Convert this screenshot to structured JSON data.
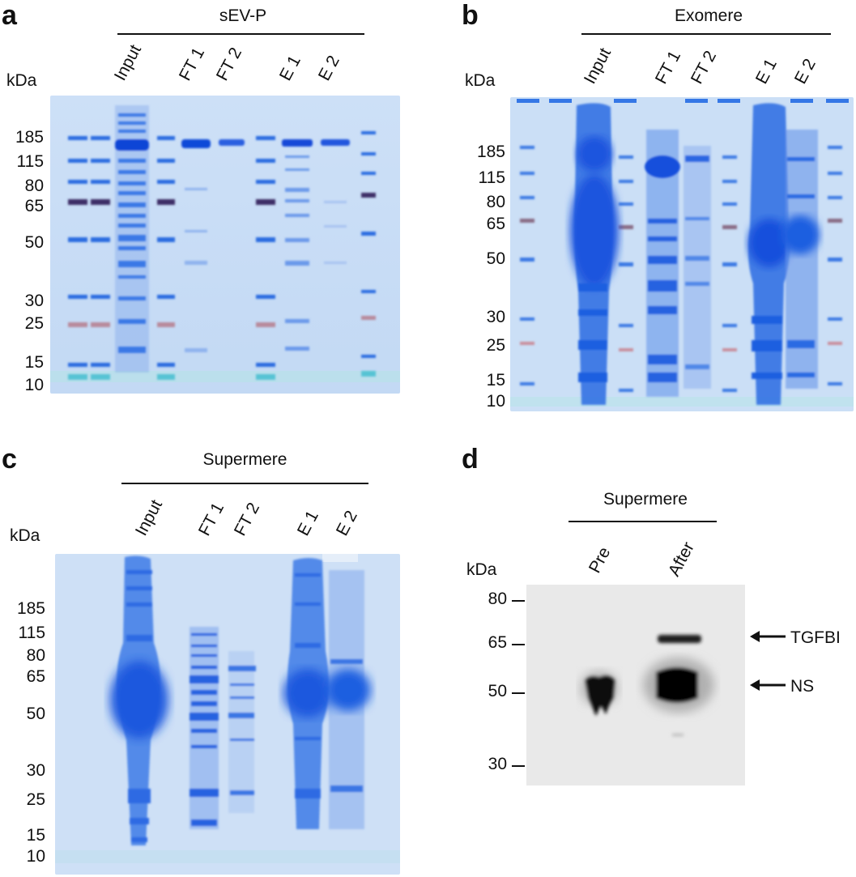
{
  "panels": {
    "a": {
      "letter": "a",
      "title": "sEV-P",
      "lanes": [
        "Input",
        "FT 1",
        "FT 2",
        "E 1",
        "E 2"
      ],
      "unit": "kDa",
      "markers": [
        "185",
        "115",
        "80",
        "65",
        "50",
        "30",
        "25",
        "15",
        "10"
      ]
    },
    "b": {
      "letter": "b",
      "title": "Exomere",
      "lanes": [
        "Input",
        "FT 1",
        "FT 2",
        "E 1",
        "E 2"
      ],
      "unit": "kDa",
      "markers": [
        "185",
        "115",
        "80",
        "65",
        "50",
        "30",
        "25",
        "15",
        "10"
      ]
    },
    "c": {
      "letter": "c",
      "title": "Supermere",
      "lanes": [
        "Input",
        "FT 1",
        "FT 2",
        "E 1",
        "E 2"
      ],
      "unit": "kDa",
      "markers": [
        "185",
        "115",
        "80",
        "65",
        "50",
        "30",
        "25",
        "15",
        "10"
      ]
    },
    "d": {
      "letter": "d",
      "title": "Supermere",
      "lanes": [
        "Pre",
        "After"
      ],
      "unit": "kDa",
      "markers": [
        "80",
        "65",
        "50",
        "30"
      ],
      "arrows": [
        "TGFBI",
        "NS"
      ]
    }
  },
  "colors": {
    "gel": "#c8dcf5",
    "band": "#1f5fe0",
    "marker_dark": "#4a3a6a",
    "marker_red": "#b98a9a",
    "blot": "#e9e9e9"
  }
}
